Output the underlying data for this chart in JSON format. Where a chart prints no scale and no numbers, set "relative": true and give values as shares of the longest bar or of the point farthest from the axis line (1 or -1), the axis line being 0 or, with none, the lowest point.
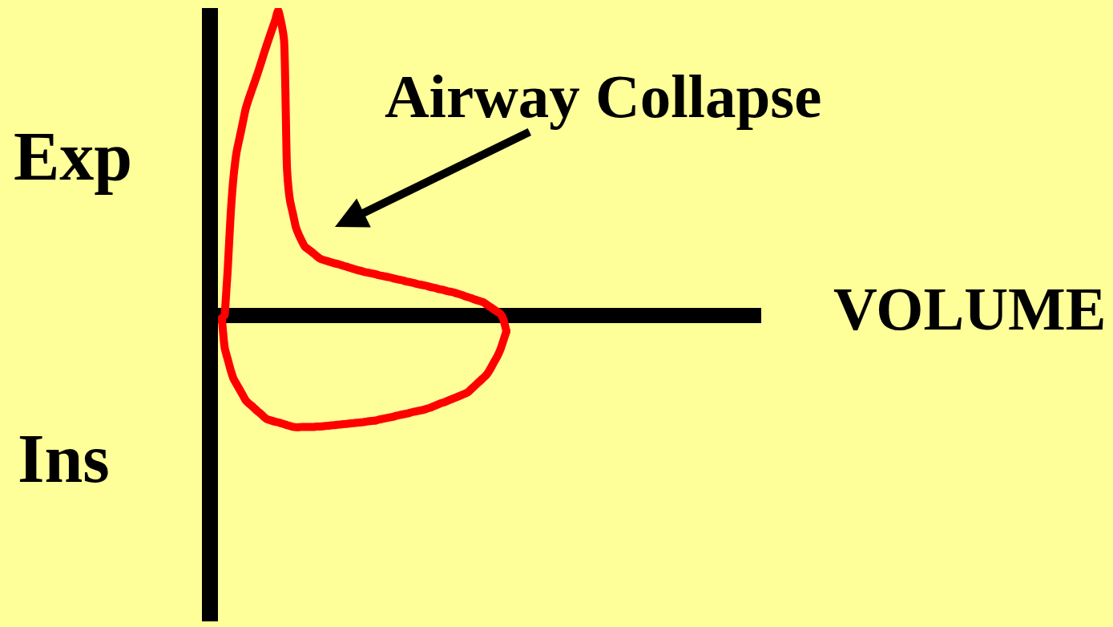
{
  "chart_data": {
    "type": "line",
    "relative": true,
    "marker": "none",
    "line_style": "solid",
    "annotations": [
      "Airway Collapse",
      "Exp",
      "Ins",
      "VOLUME"
    ],
    "categories": [
      null,
      null,
      null,
      null,
      null,
      null,
      null,
      null,
      null,
      null,
      null,
      null,
      null,
      null,
      null,
      null,
      null,
      null,
      null,
      null,
      null,
      null,
      null,
      null,
      null,
      null,
      null,
      null,
      null,
      null,
      null,
      null,
      null,
      null,
      null,
      null,
      null,
      null,
      null,
      null,
      null,
      null,
      null,
      null,
      null,
      null,
      null,
      null,
      null,
      null,
      null,
      null,
      null,
      null,
      null,
      null,
      null,
      null,
      null,
      null,
      null,
      null,
      null,
      null,
      null,
      null,
      null,
      null,
      null,
      null,
      null,
      null,
      null,
      null,
      null,
      null,
      null,
      null,
      null,
      null,
      null,
      null,
      null,
      null,
      null,
      null,
      null,
      null,
      null,
      null,
      null,
      null,
      null,
      null,
      null,
      null,
      null
    ],
    "series": [
      {
        "color": "#ff0000",
        "values": [
          null,
          0.0,
          0.151,
          0.333,
          0.458,
          0.536,
          0.582,
          0.628,
          0.675,
          0.707,
          0.735,
          0.763,
          0.791,
          0.821,
          0.852,
          0.882,
          0.911,
          0.939,
          0.967,
          1.0,
          0.962,
          0.902,
          0.478,
          0.376,
          0.332,
          0.288,
          0.263,
          0.243,
          0.225,
          0.217,
          0.21,
          0.202,
          0.194,
          0.186,
          0.182,
          0.179,
          0.176,
          0.173,
          0.17,
          0.168,
          0.165,
          0.162,
          0.159,
          0.156,
          0.153,
          0.15,
          0.147,
          0.145,
          0.142,
          0.14,
          0.138,
          0.136,
          0.134,
          0.131,
          0.129,
          0.127,
          0.125,
          0.123,
          0.12,
          0.118,
          0.116,
          0.114,
          0.111,
          0.109,
          0.107,
          0.105,
          0.102,
          0.1,
          0.098,
          0.096,
          0.093,
          0.091,
          0.089,
          0.086,
          0.084,
          0.082,
          0.079,
          0.077,
          0.075,
          0.072,
          0.069,
          0.066,
          0.062,
          0.059,
          0.056,
          0.052,
          0.049,
          0.046,
          0.043,
          0.037,
          0.03,
          0.024,
          0.017,
          0.011,
          0.004,
          -0.015,
          -0.053
        ]
      },
      {
        "color": "#ff0000",
        "values": [
          -0.01,
          -0.109,
          -0.145,
          -0.181,
          -0.21,
          -0.227,
          -0.244,
          -0.261,
          -0.279,
          -0.289,
          -0.297,
          -0.306,
          -0.315,
          -0.323,
          -0.332,
          -0.34,
          -0.344,
          -0.347,
          -0.35,
          -0.352,
          -0.355,
          -0.358,
          -0.361,
          -0.364,
          -0.367,
          -0.368,
          -0.368,
          -0.367,
          -0.367,
          -0.367,
          -0.367,
          -0.367,
          -0.366,
          -0.366,
          -0.365,
          -0.364,
          -0.363,
          -0.362,
          -0.361,
          -0.36,
          -0.359,
          -0.358,
          -0.357,
          -0.356,
          -0.355,
          -0.354,
          -0.353,
          -0.352,
          -0.351,
          -0.349,
          -0.348,
          -0.347,
          -0.346,
          -0.343,
          -0.341,
          -0.339,
          -0.337,
          -0.335,
          -0.333,
          -0.33,
          -0.328,
          -0.326,
          -0.324,
          -0.322,
          -0.319,
          -0.317,
          -0.315,
          -0.313,
          -0.311,
          -0.308,
          -0.305,
          -0.301,
          -0.297,
          -0.293,
          -0.289,
          -0.286,
          -0.282,
          -0.278,
          -0.274,
          -0.27,
          -0.266,
          -0.262,
          -0.258,
          -0.253,
          -0.244,
          -0.235,
          -0.226,
          -0.217,
          -0.208,
          -0.199,
          -0.186,
          -0.169,
          -0.151,
          -0.134,
          -0.112,
          -0.083,
          -0.053
        ]
      }
    ]
  }
}
